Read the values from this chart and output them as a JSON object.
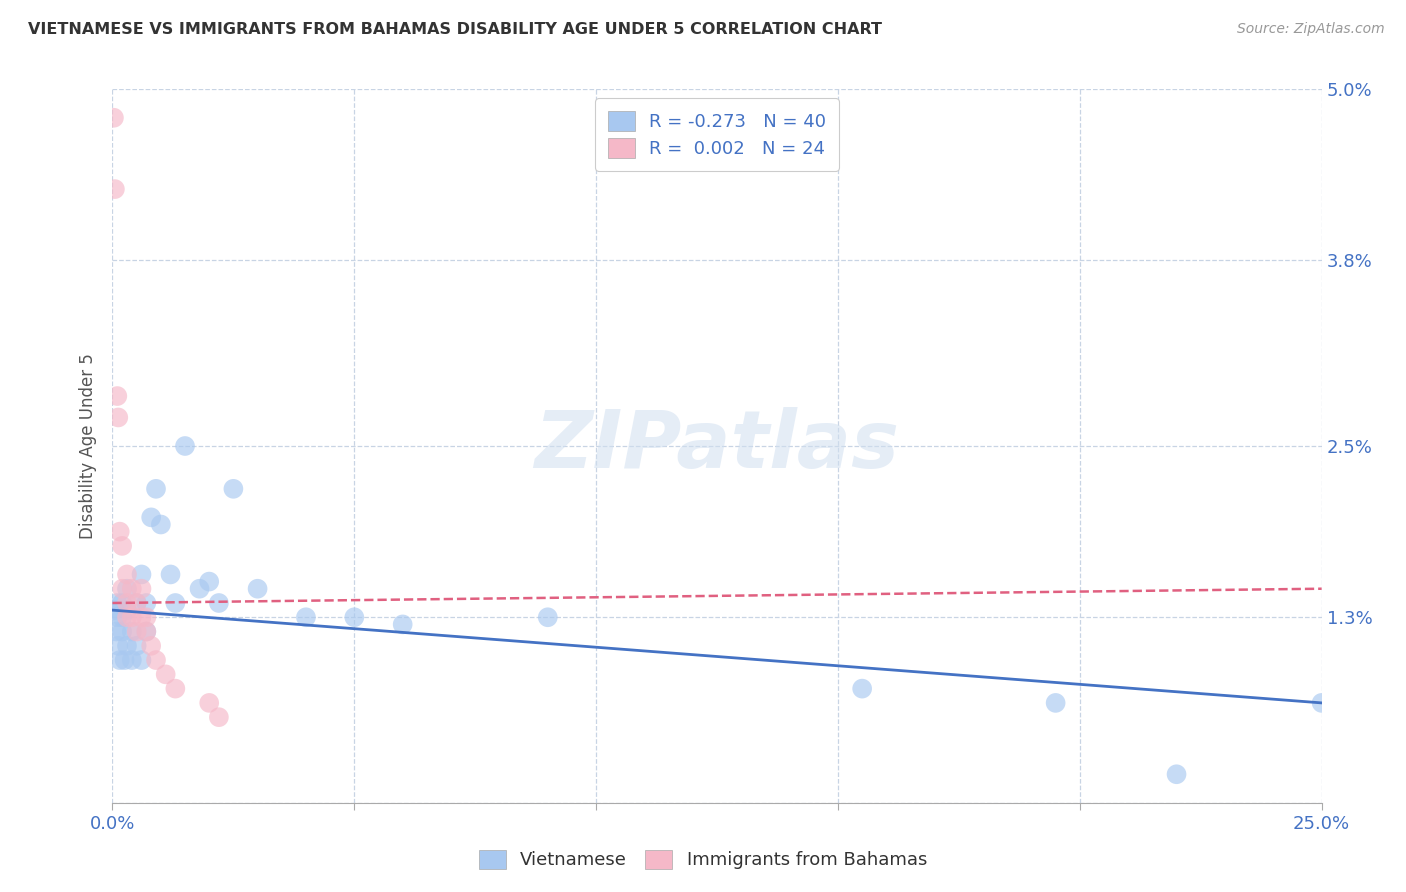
{
  "title": "VIETNAMESE VS IMMIGRANTS FROM BAHAMAS DISABILITY AGE UNDER 5 CORRELATION CHART",
  "source": "Source: ZipAtlas.com",
  "ylabel": "Disability Age Under 5",
  "watermark": "ZIPatlas",
  "xlim": [
    0.0,
    0.25
  ],
  "ylim": [
    0.0,
    0.05
  ],
  "ytick_vals": [
    0.0,
    0.013,
    0.025,
    0.038,
    0.05
  ],
  "ytick_labels_right": [
    "",
    "1.3%",
    "2.5%",
    "3.8%",
    "5.0%"
  ],
  "xtick_vals": [
    0.0,
    0.05,
    0.1,
    0.15,
    0.2,
    0.25
  ],
  "xtick_labels": [
    "0.0%",
    "",
    "",
    "",
    "",
    "25.0%"
  ],
  "legend_label1": "R = -0.273   N = 40",
  "legend_label2": "R =  0.002   N = 24",
  "legend_group1": "Vietnamese",
  "legend_group2": "Immigrants from Bahamas",
  "color_blue": "#a8c8f0",
  "color_pink": "#f5b8c8",
  "line_blue": "#4472c4",
  "line_pink": "#e06080",
  "grid_color": "#c8d4e4",
  "background": "#ffffff",
  "viet_x": [
    0.0005,
    0.0008,
    0.001,
    0.001,
    0.0012,
    0.0015,
    0.002,
    0.002,
    0.002,
    0.0025,
    0.003,
    0.003,
    0.003,
    0.004,
    0.004,
    0.005,
    0.005,
    0.006,
    0.006,
    0.007,
    0.007,
    0.008,
    0.009,
    0.01,
    0.012,
    0.013,
    0.015,
    0.018,
    0.02,
    0.022,
    0.025,
    0.03,
    0.04,
    0.05,
    0.06,
    0.09,
    0.155,
    0.195,
    0.22,
    0.25
  ],
  "viet_y": [
    0.0135,
    0.012,
    0.013,
    0.014,
    0.011,
    0.01,
    0.013,
    0.014,
    0.012,
    0.01,
    0.0135,
    0.015,
    0.011,
    0.012,
    0.01,
    0.014,
    0.011,
    0.016,
    0.01,
    0.014,
    0.012,
    0.02,
    0.022,
    0.0195,
    0.016,
    0.014,
    0.025,
    0.015,
    0.0155,
    0.014,
    0.022,
    0.015,
    0.013,
    0.013,
    0.0125,
    0.013,
    0.008,
    0.007,
    0.002,
    0.007
  ],
  "bah_x": [
    0.0003,
    0.0005,
    0.001,
    0.0012,
    0.0015,
    0.002,
    0.002,
    0.003,
    0.003,
    0.003,
    0.004,
    0.004,
    0.005,
    0.005,
    0.006,
    0.006,
    0.007,
    0.007,
    0.008,
    0.009,
    0.011,
    0.013,
    0.02,
    0.022
  ],
  "bah_y": [
    0.048,
    0.043,
    0.0285,
    0.027,
    0.019,
    0.018,
    0.015,
    0.016,
    0.014,
    0.013,
    0.015,
    0.013,
    0.014,
    0.012,
    0.015,
    0.013,
    0.013,
    0.012,
    0.011,
    0.01,
    0.009,
    0.008,
    0.007,
    0.006
  ]
}
